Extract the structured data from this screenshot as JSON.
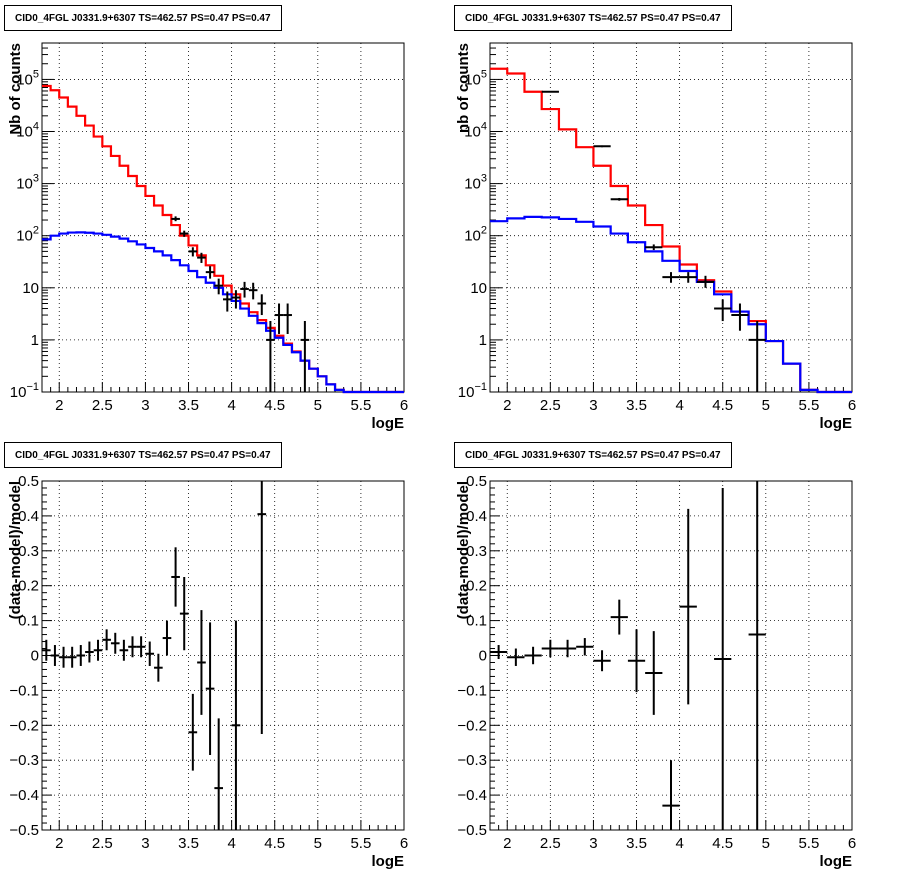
{
  "chart_data": [
    {
      "type": "line",
      "title": "CID0_4FGL J0331.9+6307 TS=462.57 PS=0.47 PS=0.47",
      "xlabel": "logE",
      "ylabel": "Nb of counts",
      "xlim": [
        1.8,
        6
      ],
      "ylim": [
        0.1,
        500000
      ],
      "yscale": "log",
      "grid": true,
      "xticks": [
        "2",
        "2.5",
        "3",
        "3.5",
        "4",
        "4.5",
        "5",
        "5.5",
        "6"
      ],
      "yticks": [
        {
          "v": 0.1,
          "label": "10",
          "sup": "−1"
        },
        {
          "v": 1,
          "label": "1",
          "sup": ""
        },
        {
          "v": 10,
          "label": "10",
          "sup": ""
        },
        {
          "v": 100,
          "label": "10",
          "sup": "2"
        },
        {
          "v": 1000,
          "label": "10",
          "sup": "3"
        },
        {
          "v": 10000,
          "label": "10",
          "sup": "4"
        },
        {
          "v": 100000,
          "label": "10",
          "sup": "5"
        }
      ],
      "bin_width": 0.1,
      "bin_start": 1.8,
      "series": [
        {
          "color": "#ff0000",
          "kind": "step",
          "values": [
            75000,
            62000,
            45000,
            30000,
            20000,
            13000,
            8000,
            5200,
            3400,
            2200,
            1400,
            900,
            580,
            380,
            250,
            160,
            100,
            65,
            42,
            27,
            17,
            11,
            7.5,
            5,
            3.4,
            2.4,
            1.7,
            1.2,
            0.85,
            0.6,
            0.4,
            0.28,
            0.2,
            0.14,
            0.11,
            0.1,
            0.1,
            0.1,
            0.1,
            0.1,
            0.1,
            0.1
          ]
        },
        {
          "color": "#0000ff",
          "kind": "step",
          "values": [
            85,
            100,
            110,
            115,
            116,
            114,
            110,
            104,
            96,
            88,
            78,
            68,
            58,
            50,
            42,
            34,
            27,
            21,
            16,
            12.5,
            10,
            7.5,
            5.6,
            4,
            2.9,
            2.1,
            1.5,
            1.1,
            0.8,
            0.58,
            0.4,
            0.28,
            0.2,
            0.14,
            0.11,
            0.1,
            0.1,
            0.1,
            0.1,
            0.1,
            0.1,
            0.1
          ]
        }
      ],
      "points": [
        {
          "x": 3.35,
          "y": 210,
          "lo": 190,
          "hi": 235
        },
        {
          "x": 3.45,
          "y": 110,
          "lo": 95,
          "hi": 125
        },
        {
          "x": 3.55,
          "y": 50,
          "lo": 40,
          "hi": 60
        },
        {
          "x": 3.65,
          "y": 38,
          "lo": 30,
          "hi": 47
        },
        {
          "x": 3.75,
          "y": 20,
          "lo": 15,
          "hi": 26
        },
        {
          "x": 3.85,
          "y": 11,
          "lo": 7.5,
          "hi": 15
        },
        {
          "x": 3.95,
          "y": 6,
          "lo": 3.5,
          "hi": 8.5
        },
        {
          "x": 4.05,
          "y": 6.5,
          "lo": 4,
          "hi": 9
        },
        {
          "x": 4.15,
          "y": 9.5,
          "lo": 6.5,
          "hi": 13
        },
        {
          "x": 4.25,
          "y": 9,
          "lo": 6,
          "hi": 12.5
        },
        {
          "x": 4.35,
          "y": 5,
          "lo": 3,
          "hi": 7.5
        },
        {
          "x": 4.45,
          "y": 1,
          "lo": 0.1,
          "hi": 2.3
        },
        {
          "x": 4.55,
          "y": 3,
          "lo": 1.3,
          "hi": 5
        },
        {
          "x": 4.65,
          "y": 3,
          "lo": 1.3,
          "hi": 5
        },
        {
          "x": 4.85,
          "y": 1,
          "lo": 0.1,
          "hi": 2.3
        }
      ]
    },
    {
      "type": "line",
      "title": "CID0_4FGL J0331.9+6307 TS=462.57 PS=0.47 PS=0.47",
      "xlabel": "logE",
      "ylabel": "nb of counts",
      "xlim": [
        1.8,
        6
      ],
      "ylim": [
        0.1,
        500000
      ],
      "yscale": "log",
      "grid": true,
      "xticks": [
        "2",
        "2.5",
        "3",
        "3.5",
        "4",
        "4.5",
        "5",
        "5.5",
        "6"
      ],
      "yticks": [
        {
          "v": 0.1,
          "label": "10",
          "sup": "−1"
        },
        {
          "v": 1,
          "label": "1",
          "sup": ""
        },
        {
          "v": 10,
          "label": "10",
          "sup": ""
        },
        {
          "v": 100,
          "label": "10",
          "sup": "2"
        },
        {
          "v": 1000,
          "label": "10",
          "sup": "3"
        },
        {
          "v": 10000,
          "label": "10",
          "sup": "4"
        },
        {
          "v": 100000,
          "label": "10",
          "sup": "5"
        }
      ],
      "bin_width": 0.2,
      "bin_start": 1.8,
      "series": [
        {
          "color": "#ff0000",
          "kind": "step",
          "values": [
            160000,
            130000,
            58000,
            27000,
            11000,
            5000,
            2200,
            900,
            380,
            160,
            62,
            28,
            14,
            8.5,
            3.5,
            2.3,
            0.95,
            0.35,
            0.11,
            0.1,
            0.1
          ]
        },
        {
          "color": "#0000ff",
          "kind": "step",
          "values": [
            190,
            215,
            230,
            225,
            210,
            185,
            150,
            110,
            75,
            50,
            33,
            21,
            13,
            7.5,
            3.5,
            2,
            0.95,
            0.35,
            0.11,
            0.1,
            0.1
          ]
        }
      ],
      "points": [
        {
          "x": 2.5,
          "y": 58000,
          "lo": 57000,
          "hi": 59000
        },
        {
          "x": 3.1,
          "y": 5200,
          "lo": 5000,
          "hi": 5400
        },
        {
          "x": 3.3,
          "y": 500,
          "lo": 470,
          "hi": 530
        },
        {
          "x": 3.7,
          "y": 60,
          "lo": 53,
          "hi": 68
        },
        {
          "x": 3.9,
          "y": 16,
          "lo": 12.5,
          "hi": 20
        },
        {
          "x": 4.1,
          "y": 16,
          "lo": 12.5,
          "hi": 20
        },
        {
          "x": 4.3,
          "y": 13,
          "lo": 10,
          "hi": 17
        },
        {
          "x": 4.5,
          "y": 4,
          "lo": 2.3,
          "hi": 6
        },
        {
          "x": 4.7,
          "y": 3,
          "lo": 1.5,
          "hi": 5
        },
        {
          "x": 4.9,
          "y": 1,
          "lo": 0.1,
          "hi": 2.3
        }
      ]
    },
    {
      "type": "scatter",
      "title": "CID0_4FGL J0331.9+6307 TS=462.57 PS=0.47 PS=0.47",
      "xlabel": "logE",
      "ylabel": "(data-model)/model",
      "xlim": [
        1.8,
        6
      ],
      "ylim": [
        -0.5,
        0.5
      ],
      "yscale": "linear",
      "grid": true,
      "xticks": [
        "2",
        "2.5",
        "3",
        "3.5",
        "4",
        "4.5",
        "5",
        "5.5",
        "6"
      ],
      "yticks": [
        {
          "v": -0.5,
          "label": "−0.5",
          "sup": ""
        },
        {
          "v": -0.4,
          "label": "−0.4",
          "sup": ""
        },
        {
          "v": -0.3,
          "label": "−0.3",
          "sup": ""
        },
        {
          "v": -0.2,
          "label": "−0.2",
          "sup": ""
        },
        {
          "v": -0.1,
          "label": "−0.1",
          "sup": ""
        },
        {
          "v": 0,
          "label": "0",
          "sup": ""
        },
        {
          "v": 0.1,
          "label": "0.1",
          "sup": ""
        },
        {
          "v": 0.2,
          "label": "0.2",
          "sup": ""
        },
        {
          "v": 0.3,
          "label": "0.3",
          "sup": ""
        },
        {
          "v": 0.4,
          "label": "0.4",
          "sup": ""
        },
        {
          "v": 0.5,
          "label": "0.5",
          "sup": ""
        }
      ],
      "bin_width": 0.1,
      "points": [
        {
          "x": 1.85,
          "y": 0.015,
          "err": 0.03
        },
        {
          "x": 1.95,
          "y": 0.0,
          "err": 0.03
        },
        {
          "x": 2.05,
          "y": -0.005,
          "err": 0.03
        },
        {
          "x": 2.15,
          "y": -0.005,
          "err": 0.03
        },
        {
          "x": 2.25,
          "y": 0.0,
          "err": 0.03
        },
        {
          "x": 2.35,
          "y": 0.01,
          "err": 0.03
        },
        {
          "x": 2.45,
          "y": 0.015,
          "err": 0.03
        },
        {
          "x": 2.55,
          "y": 0.045,
          "err": 0.03
        },
        {
          "x": 2.65,
          "y": 0.035,
          "err": 0.03
        },
        {
          "x": 2.75,
          "y": 0.015,
          "err": 0.03
        },
        {
          "x": 2.85,
          "y": 0.025,
          "err": 0.03
        },
        {
          "x": 2.95,
          "y": 0.025,
          "err": 0.03
        },
        {
          "x": 3.05,
          "y": 0.005,
          "err": 0.035
        },
        {
          "x": 3.15,
          "y": -0.035,
          "err": 0.04
        },
        {
          "x": 3.25,
          "y": 0.05,
          "err": 0.05
        },
        {
          "x": 3.35,
          "y": 0.225,
          "err": 0.085
        },
        {
          "x": 3.45,
          "y": 0.12,
          "err": 0.105
        },
        {
          "x": 3.55,
          "y": -0.22,
          "err": 0.11
        },
        {
          "x": 3.65,
          "y": -0.02,
          "err": 0.15
        },
        {
          "x": 3.75,
          "y": -0.095,
          "err": 0.19
        },
        {
          "x": 3.85,
          "y": -0.38,
          "err": 0.2
        },
        {
          "x": 4.05,
          "y": -0.2,
          "err": 0.3
        },
        {
          "x": 4.35,
          "y": 0.405,
          "err": 0.63
        }
      ]
    },
    {
      "type": "scatter",
      "title": "CID0_4FGL J0331.9+6307 TS=462.57 PS=0.47 PS=0.47",
      "xlabel": "logE",
      "ylabel": "(data-model)/model",
      "xlim": [
        1.8,
        6
      ],
      "ylim": [
        -0.5,
        0.5
      ],
      "yscale": "linear",
      "grid": true,
      "xticks": [
        "2",
        "2.5",
        "3",
        "3.5",
        "4",
        "4.5",
        "5",
        "5.5",
        "6"
      ],
      "yticks": [
        {
          "v": -0.5,
          "label": "−0.5",
          "sup": ""
        },
        {
          "v": -0.4,
          "label": "−0.4",
          "sup": ""
        },
        {
          "v": -0.3,
          "label": "−0.3",
          "sup": ""
        },
        {
          "v": -0.2,
          "label": "−0.2",
          "sup": ""
        },
        {
          "v": -0.1,
          "label": "−0.1",
          "sup": ""
        },
        {
          "v": 0,
          "label": "0",
          "sup": ""
        },
        {
          "v": 0.1,
          "label": "0.1",
          "sup": ""
        },
        {
          "v": 0.2,
          "label": "0.2",
          "sup": ""
        },
        {
          "v": 0.3,
          "label": "0.3",
          "sup": ""
        },
        {
          "v": 0.4,
          "label": "0.4",
          "sup": ""
        },
        {
          "v": 0.5,
          "label": "0.5",
          "sup": ""
        }
      ],
      "bin_width": 0.2,
      "points": [
        {
          "x": 1.9,
          "y": 0.01,
          "err": 0.02
        },
        {
          "x": 2.1,
          "y": -0.005,
          "err": 0.025
        },
        {
          "x": 2.3,
          "y": 0.0,
          "err": 0.025
        },
        {
          "x": 2.5,
          "y": 0.02,
          "err": 0.025
        },
        {
          "x": 2.7,
          "y": 0.02,
          "err": 0.025
        },
        {
          "x": 2.9,
          "y": 0.025,
          "err": 0.025
        },
        {
          "x": 3.1,
          "y": -0.015,
          "err": 0.03
        },
        {
          "x": 3.3,
          "y": 0.11,
          "err": 0.05
        },
        {
          "x": 3.5,
          "y": -0.015,
          "err": 0.09
        },
        {
          "x": 3.7,
          "y": -0.05,
          "err": 0.12
        },
        {
          "x": 3.9,
          "y": -0.43,
          "err": 0.13
        },
        {
          "x": 4.1,
          "y": 0.14,
          "err": 0.28
        },
        {
          "x": 4.5,
          "y": -0.01,
          "err": 0.49
        },
        {
          "x": 4.9,
          "y": 0.06,
          "err": 0.6
        }
      ]
    }
  ]
}
